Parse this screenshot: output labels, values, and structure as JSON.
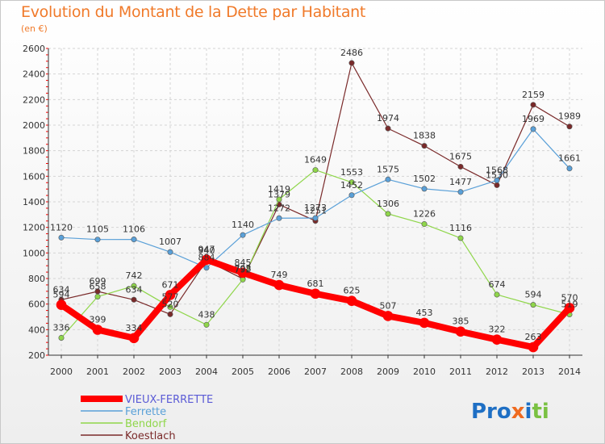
{
  "chart_data": {
    "type": "line",
    "title": "Evolution du Montant de la Dette par Habitant",
    "subtitle": "(en €)",
    "xlabel": "",
    "ylabel": "",
    "x": [
      "2000",
      "2001",
      "2002",
      "2003",
      "2004",
      "2005",
      "2006",
      "2007",
      "2008",
      "2009",
      "2010",
      "2011",
      "2012",
      "2013",
      "2014"
    ],
    "ylim": [
      200,
      2600
    ],
    "yticks": [
      200,
      400,
      600,
      800,
      1000,
      1200,
      1400,
      1600,
      1800,
      2000,
      2200,
      2400,
      2600
    ],
    "grid": true,
    "legend_position": "bottom-left",
    "series": [
      {
        "name": "VIEUX-FERRETTE",
        "color": "#ff0000",
        "values": [
          594,
          399,
          334,
          671,
          947,
          845,
          749,
          681,
          625,
          507,
          453,
          385,
          322,
          263,
          570
        ]
      },
      {
        "name": "Ferrette",
        "color": "#5aa0d8",
        "values": [
          1120,
          1105,
          1106,
          1007,
          884,
          1140,
          1272,
          1273,
          1452,
          1575,
          1502,
          1477,
          1568,
          1969,
          1661
        ]
      },
      {
        "name": "Bendorf",
        "color": "#8fd64a",
        "values": [
          336,
          658,
          742,
          577,
          438,
          792,
          1419,
          1649,
          1553,
          1306,
          1226,
          1116,
          674,
          594,
          519
        ]
      },
      {
        "name": "Koestlach",
        "color": "#7a2a2a",
        "values": [
          634,
          699,
          634,
          520,
          940,
          798,
          1379,
          1251,
          2486,
          1974,
          1838,
          1675,
          1530,
          2159,
          1989
        ]
      }
    ]
  },
  "logo": {
    "text": "Proxiti"
  }
}
